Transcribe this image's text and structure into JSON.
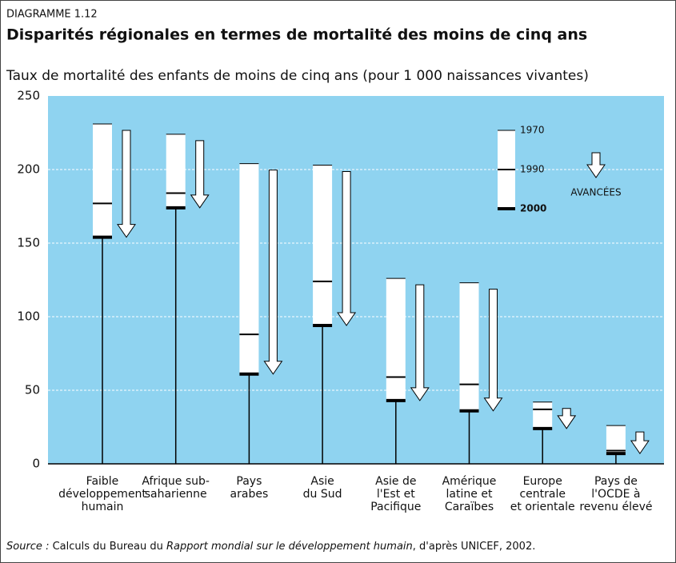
{
  "label": "DIAGRAMME 1.12",
  "source": [
    "Source :",
    "Calculs du Bureau du",
    "Rapport mondial sur le développement humain",
    ", d'après UNICEF, 2002."
  ],
  "chart_data": {
    "type": "range-bar",
    "title": "Disparités régionales en termes de mortalité des moins de cinq ans",
    "subtitle": "Taux de mortalité des enfants de moins de cinq ans (pour 1 000 naissances vivantes)",
    "categories": [
      "Faible\ndéveloppement\nhumain",
      "Afrique sub-\nsaharienne",
      "Pays\narabes",
      "Asie\ndu Sud",
      "Asie de\nl'Est et\nPacifique",
      "Amérique\nlatine et\nCaraïbes",
      "Europe\ncentrale\net orientale",
      "Pays de\nl'OCDE à\nrevenu élevé"
    ],
    "series": [
      {
        "name": "1970",
        "values": [
          231,
          224,
          204,
          203,
          126,
          123,
          42,
          26
        ]
      },
      {
        "name": "1990",
        "values": [
          177,
          184,
          88,
          124,
          59,
          54,
          37,
          9
        ]
      },
      {
        "name": "2000",
        "values": [
          154,
          174,
          61,
          94,
          43,
          36,
          24,
          7
        ]
      }
    ],
    "arrow_label": "AVANCÉES",
    "ylim": [
      0,
      250
    ],
    "yticks": [
      0,
      50,
      100,
      150,
      200,
      250
    ],
    "grid": true,
    "background": "#8fd3f0"
  }
}
